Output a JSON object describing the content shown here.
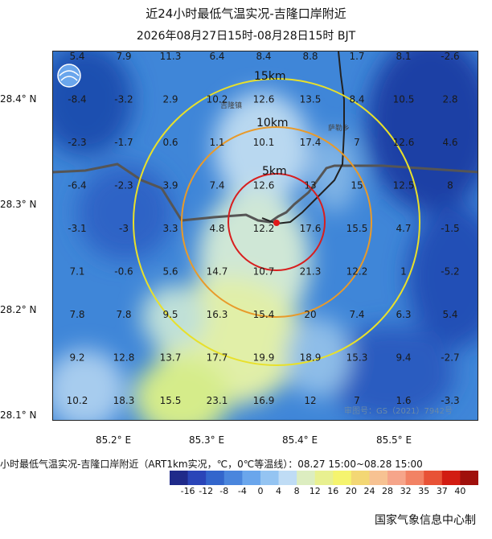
{
  "header": {
    "title": "近24小时最低气温实况-吉隆口岸附近",
    "subtitle": "2026年08月27日15时-08月28日15时 BJT"
  },
  "map": {
    "y_axis_labels": [
      "28.4° N",
      "28.3° N",
      "28.2° N",
      "28.1° N"
    ],
    "x_axis_labels": [
      "85.2° E",
      "85.3° E",
      "85.4° E",
      "85.5° E"
    ],
    "rings": [
      {
        "label": "15km",
        "color": "#e8e02a"
      },
      {
        "label": "10km",
        "color": "#e89a2a"
      },
      {
        "label": "5km",
        "color": "#d81e1e"
      }
    ],
    "place_names": [
      "吉隆镇",
      "萨勒乡"
    ],
    "approval_no": "审图号：GS（2021）7942号",
    "grid_values": [
      [
        "5.4",
        "7.9",
        "11.3",
        "6.4",
        "8.4",
        "8.8",
        "1.7",
        "8.1",
        "-2.6",
        "-7.5",
        "-5.5"
      ],
      [
        "-8.4",
        "-3.2",
        "2.9",
        "10.2",
        "12.6",
        "13.5",
        "8.4",
        "10.5",
        "2.8",
        "-2.6",
        "-5.3"
      ],
      [
        "-2.3",
        "-1.7",
        "0.6",
        "1.1",
        "10.1",
        "17.4",
        "7",
        "12.6",
        "4.6",
        "5.5",
        "-6.6"
      ],
      [
        "-6.4",
        "-2.3",
        "3.9",
        "7.4",
        "12.6",
        "13",
        "15",
        "12.5",
        "8",
        "2.8",
        "-0.4"
      ],
      [
        "-3.1",
        "-3",
        "3.3",
        "4.8",
        "12.2",
        "17.6",
        "15.5",
        "4.7",
        "-1.5",
        "-2.8",
        "-8.2"
      ],
      [
        "7.1",
        "-0.6",
        "5.6",
        "14.7",
        "10.7",
        "21.3",
        "12.2",
        "1",
        "-5.2",
        "-7.1",
        "-1.2"
      ],
      [
        "7.8",
        "7.8",
        "9.5",
        "16.3",
        "15.4",
        "20",
        "7.4",
        "6.3",
        "5.4",
        "1",
        "0.8"
      ],
      [
        "9.2",
        "12.8",
        "13.7",
        "17.7",
        "19.9",
        "18.9",
        "15.3",
        "9.4",
        "-2.7",
        "-7.3",
        "-5.6"
      ],
      [
        "10.2",
        "18.3",
        "15.5",
        "23.1",
        "16.9",
        "12",
        "7",
        "1.6",
        "-3.3",
        "-3",
        "-1"
      ]
    ]
  },
  "caption": "小时最低气温实况-吉隆口岸附近（ART1km实况，℃，0℃等温线）：08.27 15:00~08.28 15:00",
  "colorbar": {
    "labels": [
      "-16",
      "-12",
      "-8",
      "-4",
      "0",
      "4",
      "8",
      "12",
      "16",
      "20",
      "24",
      "28",
      "32",
      "35",
      "37",
      "40"
    ],
    "colors": [
      "#1f2a8a",
      "#2a45b8",
      "#3366cc",
      "#4a86dd",
      "#6aa6ec",
      "#94c4f2",
      "#bfdcf5",
      "#dcedc0",
      "#e8f090",
      "#f5f46e",
      "#f3d774",
      "#f7c292",
      "#f6a58a",
      "#f28264",
      "#e85236",
      "#d21c12",
      "#a0100c"
    ]
  },
  "footer": {
    "organization": "国家气象信息中心制"
  }
}
